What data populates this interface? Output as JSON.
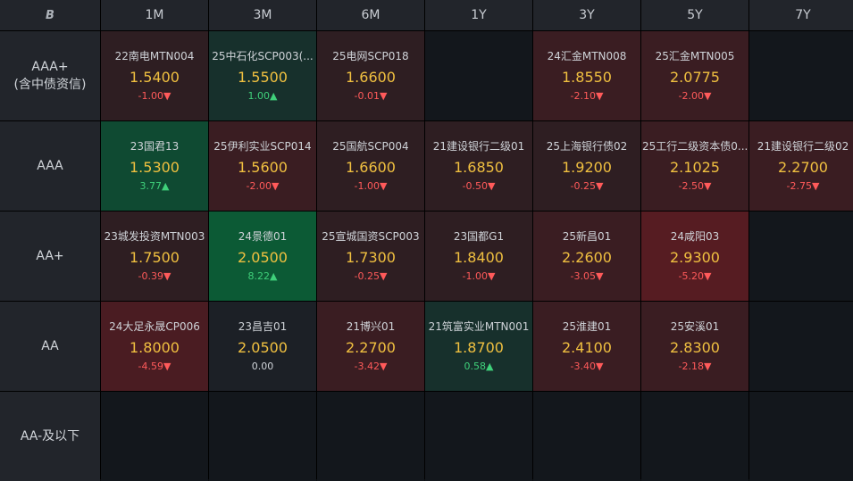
{
  "logo": "B",
  "columns": [
    "1M",
    "3M",
    "6M",
    "1Y",
    "3Y",
    "5Y",
    "7Y"
  ],
  "rows": [
    {
      "label": "AAA+",
      "sublabel": "(含中债资信)"
    },
    {
      "label": "AAA",
      "sublabel": ""
    },
    {
      "label": "AA+",
      "sublabel": ""
    },
    {
      "label": "AA",
      "sublabel": ""
    },
    {
      "label": "AA-及以下",
      "sublabel": ""
    }
  ],
  "cells": [
    [
      {
        "name": "22南电MTN004",
        "yield": "1.5400",
        "change": "-1.00▼",
        "dir": "neg",
        "tone": "r1"
      },
      {
        "name": "25中石化SCP003(...",
        "yield": "1.5500",
        "change": "1.00▲",
        "dir": "pos",
        "tone": "g1"
      },
      {
        "name": "25电网SCP018",
        "yield": "1.6600",
        "change": "-0.01▼",
        "dir": "neg",
        "tone": "r1"
      },
      null,
      {
        "name": "24汇金MTN008",
        "yield": "1.8550",
        "change": "-2.10▼",
        "dir": "neg",
        "tone": "r2"
      },
      {
        "name": "25汇金MTN005",
        "yield": "2.0775",
        "change": "-2.00▼",
        "dir": "neg",
        "tone": "r2"
      },
      null
    ],
    [
      {
        "name": "23国君13",
        "yield": "1.5300",
        "change": "3.77▲",
        "dir": "pos",
        "tone": "g2"
      },
      {
        "name": "25伊利实业SCP014",
        "yield": "1.5600",
        "change": "-2.00▼",
        "dir": "neg",
        "tone": "r2"
      },
      {
        "name": "25国航SCP004",
        "yield": "1.6600",
        "change": "-1.00▼",
        "dir": "neg",
        "tone": "r1"
      },
      {
        "name": "21建设银行二级01",
        "yield": "1.6850",
        "change": "-0.50▼",
        "dir": "neg",
        "tone": "r1"
      },
      {
        "name": "25上海银行债02",
        "yield": "1.9200",
        "change": "-0.25▼",
        "dir": "neg",
        "tone": "r1"
      },
      {
        "name": "25工行二级资本债0...",
        "yield": "2.1025",
        "change": "-2.50▼",
        "dir": "neg",
        "tone": "r2"
      },
      {
        "name": "21建设银行二级02",
        "yield": "2.2700",
        "change": "-2.75▼",
        "dir": "neg",
        "tone": "r2"
      }
    ],
    [
      {
        "name": "23城发投资MTN003",
        "yield": "1.7500",
        "change": "-0.39▼",
        "dir": "neg",
        "tone": "r1"
      },
      {
        "name": "24景德01",
        "yield": "2.0500",
        "change": "8.22▲",
        "dir": "pos",
        "tone": "g3"
      },
      {
        "name": "25宣城国资SCP003",
        "yield": "1.7300",
        "change": "-0.25▼",
        "dir": "neg",
        "tone": "r1"
      },
      {
        "name": "23国都G1",
        "yield": "1.8400",
        "change": "-1.00▼",
        "dir": "neg",
        "tone": "r1"
      },
      {
        "name": "25新昌01",
        "yield": "2.2600",
        "change": "-3.05▼",
        "dir": "neg",
        "tone": "r2"
      },
      {
        "name": "24咸阳03",
        "yield": "2.9300",
        "change": "-5.20▼",
        "dir": "neg",
        "tone": "r4"
      },
      null
    ],
    [
      {
        "name": "24大足永晟CP006",
        "yield": "1.8000",
        "change": "-4.59▼",
        "dir": "neg",
        "tone": "r3"
      },
      {
        "name": "23昌吉01",
        "yield": "2.0500",
        "change": "0.00",
        "dir": "flat",
        "tone": "neutral"
      },
      {
        "name": "21博兴01",
        "yield": "2.2700",
        "change": "-3.42▼",
        "dir": "neg",
        "tone": "r2"
      },
      {
        "name": "21筑富实业MTN001",
        "yield": "1.8700",
        "change": "0.58▲",
        "dir": "pos",
        "tone": "g1"
      },
      {
        "name": "25淮建01",
        "yield": "2.4100",
        "change": "-3.40▼",
        "dir": "neg",
        "tone": "r2"
      },
      {
        "name": "25安溪01",
        "yield": "2.8300",
        "change": "-2.18▼",
        "dir": "neg",
        "tone": "r2"
      },
      null
    ],
    [
      null,
      null,
      null,
      null,
      null,
      null,
      null
    ]
  ]
}
